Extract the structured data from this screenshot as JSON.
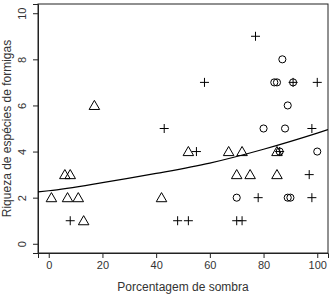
{
  "chart_data": {
    "type": "scatter",
    "xlabel": "Porcentagem de sombra",
    "ylabel": "Riqueza de espécies de formigas",
    "xlim": [
      -4,
      104
    ],
    "ylim": [
      -0.4,
      10.4
    ],
    "xticks": [
      0,
      20,
      40,
      60,
      80,
      100
    ],
    "yticks": [
      0,
      2,
      4,
      6,
      8,
      10
    ],
    "series": [
      {
        "marker": "triangle",
        "color": "#000000",
        "x": [
          1,
          6,
          8,
          7,
          11,
          13,
          17,
          42,
          52,
          67,
          70,
          72,
          75,
          85,
          85
        ],
        "values": [
          2,
          3,
          3,
          2,
          2,
          1,
          6,
          2,
          4,
          4,
          3,
          4,
          3,
          4,
          3
        ]
      },
      {
        "marker": "plus",
        "color": "#000000",
        "x": [
          8,
          43,
          48,
          52,
          55,
          58,
          70,
          72,
          77,
          78,
          86,
          91,
          97,
          98,
          98,
          100
        ],
        "values": [
          1,
          5,
          1,
          1,
          4,
          7,
          1,
          1,
          9,
          2,
          4,
          7,
          3,
          5,
          2,
          7
        ]
      },
      {
        "marker": "circle",
        "color": "#000000",
        "x": [
          70,
          80,
          84,
          85,
          86,
          87,
          88,
          89,
          89,
          90,
          91,
          100
        ],
        "values": [
          2,
          5,
          7,
          7,
          4,
          8,
          5,
          6,
          2,
          2,
          7,
          4
        ]
      },
      {
        "type": "line",
        "line_style": "solid",
        "color": "#000000",
        "x": [
          -4,
          0,
          20,
          40,
          60,
          80,
          100,
          104
        ],
        "values": [
          2.25,
          2.3,
          2.65,
          3.05,
          3.5,
          4.1,
          4.8,
          4.95
        ]
      }
    ]
  }
}
